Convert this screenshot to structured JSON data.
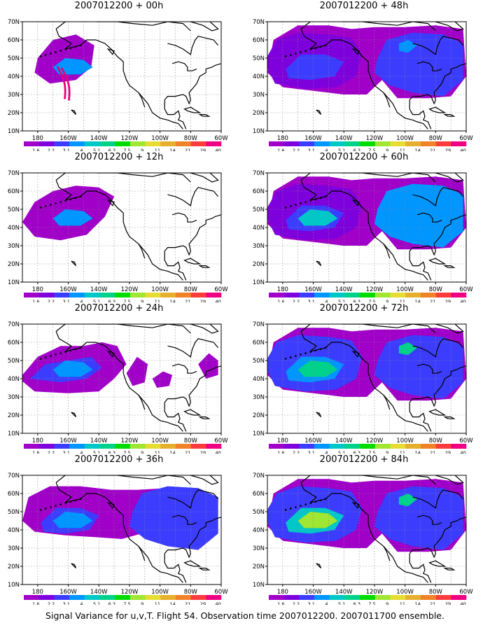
{
  "panels": [
    {
      "title": "2007012200 + 00h",
      "id": "00h"
    },
    {
      "title": "2007012200 + 12h",
      "id": "12h"
    },
    {
      "title": "2007012200 + 24h",
      "id": "24h"
    },
    {
      "title": "2007012200 + 36h",
      "id": "36h"
    },
    {
      "title": "2007012200 + 48h",
      "id": "48h"
    },
    {
      "title": "2007012200 + 60h",
      "id": "60h"
    },
    {
      "title": "2007012200 + 72h",
      "id": "72h"
    },
    {
      "title": "2007012200 + 84h",
      "id": "84h"
    }
  ],
  "lat_ticks": [
    "10N",
    "20N",
    "30N",
    "40N",
    "50N",
    "60N",
    "70N"
  ],
  "lon_ticks": [
    "180",
    "160W",
    "140W",
    "120W",
    "100W",
    "80W",
    "60W"
  ],
  "colorbar": {
    "labels": [
      "1.6",
      "2.2",
      "3.1",
      "4",
      "5.1",
      "6.3",
      "7.5",
      "9",
      "11",
      "14",
      "21",
      "29",
      "40"
    ],
    "colors": [
      "#a000c8",
      "#7e00dc",
      "#3c3cff",
      "#0096ff",
      "#00c8c8",
      "#00d28c",
      "#00dc00",
      "#a0e632",
      "#e6dc32",
      "#e6af2d",
      "#f08228",
      "#fa3c3c",
      "#f00082"
    ]
  },
  "caption": "Signal Variance for u,v,T. Flight 54. Observation time 2007012200. 2007011700 ensemble."
}
